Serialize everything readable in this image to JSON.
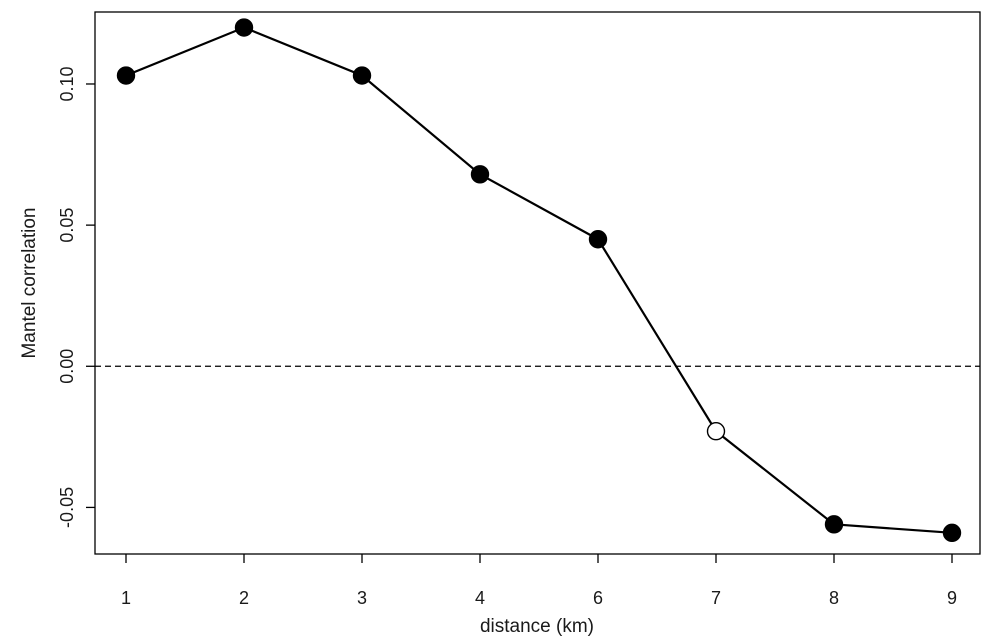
{
  "chart_data": {
    "type": "line",
    "title": "",
    "xlabel": "distance (km)",
    "ylabel": "Mantel correlation",
    "categories": [
      "1",
      "2",
      "3",
      "4",
      "6",
      "7",
      "8",
      "9"
    ],
    "series": [
      {
        "values": [
          0.103,
          0.12,
          0.103,
          0.068,
          0.045,
          -0.023,
          -0.056,
          -0.059
        ],
        "significant": [
          true,
          true,
          true,
          true,
          true,
          false,
          true,
          true
        ]
      }
    ],
    "yticks": [
      "-0.05",
      "0.00",
      "0.05",
      "0.10"
    ],
    "ylim": [
      -0.0665,
      0.1255
    ],
    "reference_line": {
      "y": 0,
      "style": "dashed"
    },
    "grid": false,
    "legend": "none",
    "colors": {
      "line": "#000000",
      "significant_fill": "#000000",
      "nonsignificant_fill": "#ffffff"
    }
  }
}
